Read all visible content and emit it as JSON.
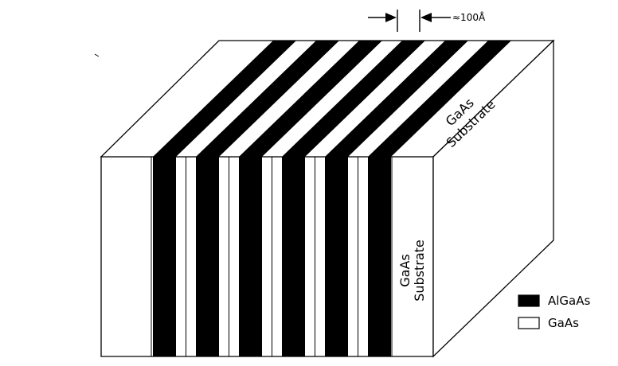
{
  "diagram": {
    "spacing_label": "≈100Å",
    "top_face_label_line1": "GaAs",
    "top_face_label_line2": "Substrate",
    "front_face_label_line1": "GaAs",
    "front_face_label_line2": "Substrate",
    "layer_count_algaas": 6
  },
  "legend": {
    "items": [
      {
        "label": "AlGaAs",
        "swatch": "#000000"
      },
      {
        "label": "GaAs",
        "swatch": "#ffffff"
      }
    ]
  },
  "colors": {
    "line": "#000000",
    "background": "#ffffff"
  }
}
